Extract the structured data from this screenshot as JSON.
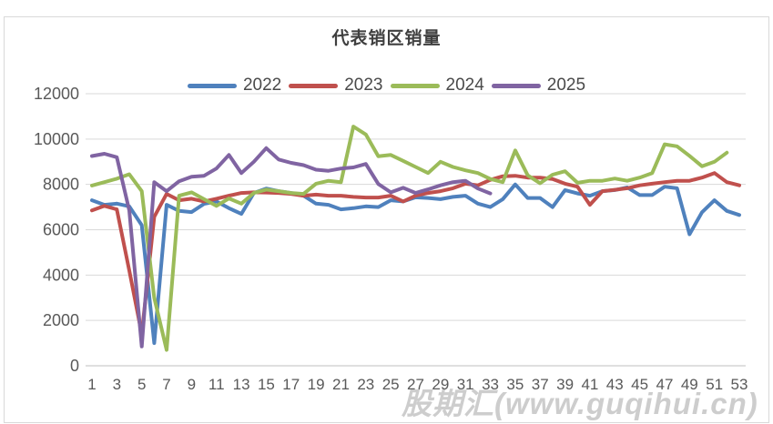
{
  "watermark": "股期汇(www.guqihui.cn)",
  "chart_data": {
    "type": "line",
    "title": "代表销区销量",
    "xlabel": "",
    "ylabel": "",
    "x_unit": "周 (week of year)",
    "xlim": [
      1,
      53
    ],
    "ylim": [
      0,
      12000
    ],
    "x_ticks": [
      "1",
      "3",
      "5",
      "7",
      "9",
      "11",
      "13",
      "15",
      "17",
      "19",
      "21",
      "23",
      "25",
      "27",
      "29",
      "31",
      "33",
      "35",
      "37",
      "39",
      "41",
      "43",
      "45",
      "47",
      "49",
      "51",
      "53"
    ],
    "y_ticks": [
      "0",
      "2000",
      "4000",
      "6000",
      "8000",
      "10000",
      "12000"
    ],
    "grid": "horizontal",
    "legend_position": "top",
    "colors": {
      "grid": "#d9d9d9",
      "axis": "#bfbfbf",
      "tick_text": "#595959",
      "title_text": "#3f3f3f"
    },
    "series": [
      {
        "name": "2022",
        "color": "#4F81BD",
        "start_week": 1,
        "values": [
          7300,
          7100,
          7150,
          7030,
          6200,
          1000,
          7100,
          6830,
          6780,
          7140,
          7250,
          6950,
          6700,
          7620,
          7820,
          7700,
          7620,
          7500,
          7150,
          7100,
          6900,
          6950,
          7030,
          7000,
          7300,
          7250,
          7430,
          7400,
          7350,
          7450,
          7500,
          7150,
          7000,
          7350,
          8000,
          7400,
          7400,
          7000,
          7750,
          7600,
          7500,
          7700,
          7750,
          7870,
          7530,
          7530,
          7900,
          7830,
          5800,
          6770,
          7300,
          6830,
          6650
        ]
      },
      {
        "name": "2023",
        "color": "#C0504D",
        "start_week": 1,
        "values": [
          6850,
          7050,
          6900,
          4200,
          1400,
          6570,
          7580,
          7300,
          7370,
          7250,
          7370,
          7500,
          7620,
          7650,
          7640,
          7620,
          7580,
          7500,
          7550,
          7500,
          7500,
          7450,
          7420,
          7420,
          7500,
          7250,
          7500,
          7620,
          7700,
          7830,
          8030,
          7960,
          8200,
          8360,
          8380,
          8300,
          8300,
          8240,
          8030,
          7900,
          7100,
          7700,
          7760,
          7830,
          7960,
          8030,
          8100,
          8160,
          8160,
          8300,
          8500,
          8100,
          7960
        ]
      },
      {
        "name": "2024",
        "color": "#9BBB59",
        "start_week": 1,
        "values": [
          7950,
          8100,
          8250,
          8450,
          7700,
          3000,
          700,
          7500,
          7650,
          7350,
          7050,
          7380,
          7150,
          7620,
          7770,
          7700,
          7620,
          7580,
          8030,
          8160,
          8100,
          10550,
          10200,
          9240,
          9300,
          9040,
          8770,
          8500,
          9000,
          8770,
          8620,
          8500,
          8240,
          8100,
          9500,
          8400,
          8050,
          8430,
          8580,
          8070,
          8160,
          8160,
          8260,
          8160,
          8300,
          8500,
          9770,
          9680,
          9260,
          8800,
          9000,
          9400
        ]
      },
      {
        "name": "2025",
        "color": "#8064A2",
        "start_week": 1,
        "values": [
          9250,
          9350,
          9200,
          6850,
          850,
          8100,
          7700,
          8140,
          8340,
          8380,
          8700,
          9300,
          8500,
          9000,
          9600,
          9100,
          8950,
          8850,
          8650,
          8600,
          8700,
          8750,
          8900,
          8020,
          7650,
          7850,
          7620,
          7780,
          7960,
          8100,
          8160,
          7820,
          7600
        ]
      }
    ]
  }
}
